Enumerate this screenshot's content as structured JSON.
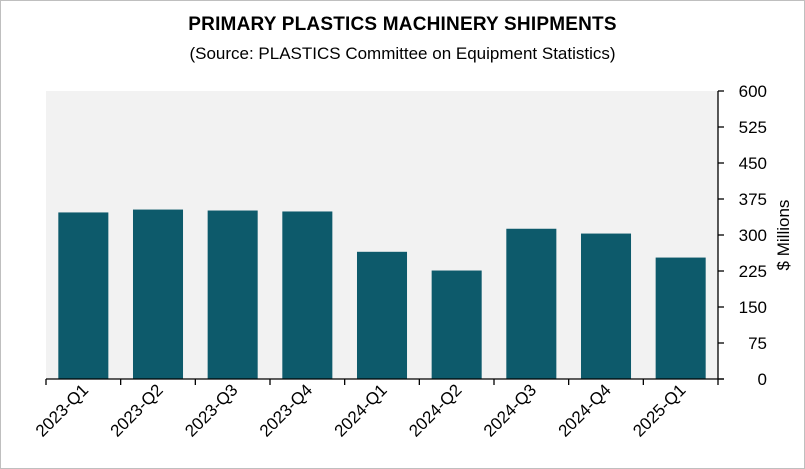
{
  "chart_data": {
    "type": "bar",
    "title": "PRIMARY PLASTICS MACHINERY SHIPMENTS",
    "subtitle": "(Source: PLASTICS Committee on Equipment Statistics)",
    "xlabel": "",
    "ylabel": "$ Millions",
    "y_axis_side": "right",
    "ylim": [
      0,
      600
    ],
    "yticks": [
      0,
      75,
      150,
      225,
      300,
      375,
      450,
      525,
      600
    ],
    "categories": [
      "2023-Q1",
      "2023-Q2",
      "2023-Q3",
      "2023-Q4",
      "2024-Q1",
      "2024-Q2",
      "2024-Q3",
      "2024-Q4",
      "2025-Q1"
    ],
    "values": [
      347,
      353,
      351,
      349,
      265,
      226,
      313,
      303,
      253
    ],
    "grid": false,
    "bar_color": "#0d5a6b",
    "plot_background": "#f2f2f2"
  }
}
